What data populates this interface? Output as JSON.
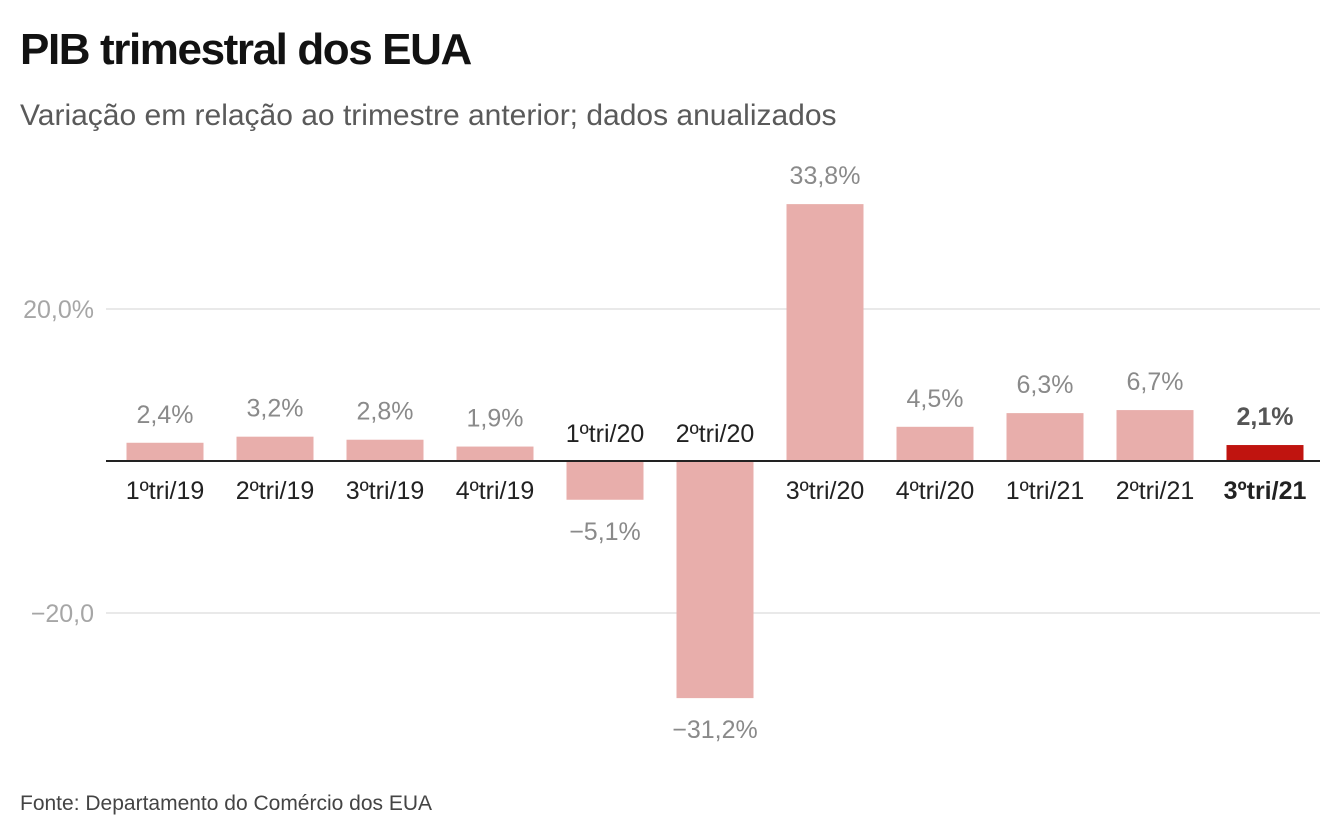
{
  "header": {
    "title": "PIB trimestral dos EUA",
    "subtitle": "Variação em relação ao trimestre anterior; dados anualizados"
  },
  "footer": {
    "source": "Fonte: Departamento do Comércio dos EUA"
  },
  "colors": {
    "bar": "#e8aeab",
    "highlight": "#c0140f",
    "grid": "#e2e2e2",
    "axis": "#222222",
    "tick_text": "#a6a6a6",
    "value_text": "#8a8a8a",
    "category_text": "#222222"
  },
  "chart_data": {
    "type": "bar",
    "title": "PIB trimestral dos EUA",
    "subtitle": "Variação em relação ao trimestre anterior; dados anualizados",
    "xlabel": "",
    "ylabel": "",
    "ylim": [
      -31.2,
      33.8
    ],
    "grid": true,
    "yticks": [
      {
        "value": 20,
        "label": "20,0%"
      },
      {
        "value": -20,
        "label": "−20,0"
      }
    ],
    "categories": [
      "1ºtri/19",
      "2ºtri/19",
      "3ºtri/19",
      "4ºtri/19",
      "1ºtri/20",
      "2ºtri/20",
      "3ºtri/20",
      "4ºtri/20",
      "1ºtri/21",
      "2ºtri/21",
      "3ºtri/21"
    ],
    "values": [
      2.4,
      3.2,
      2.8,
      1.9,
      -5.1,
      -31.2,
      33.8,
      4.5,
      6.3,
      6.7,
      2.1
    ],
    "value_labels": [
      "2,4%",
      "3,2%",
      "2,8%",
      "1,9%",
      "−5,1%",
      "−31,2%",
      "33,8%",
      "4,5%",
      "6,3%",
      "6,7%",
      "2,1%"
    ],
    "highlight_index": 10
  }
}
